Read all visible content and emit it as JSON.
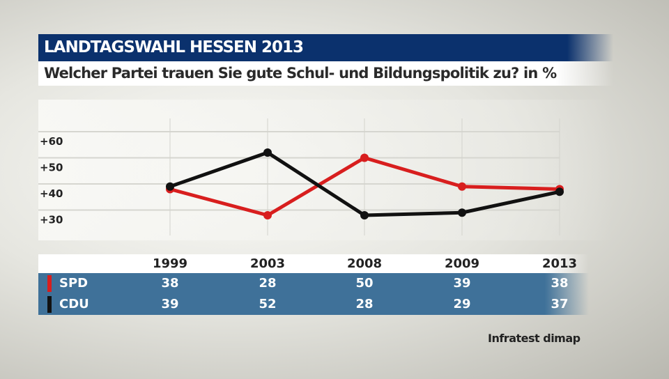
{
  "header": {
    "title": "LANDTAGSWAHL HESSEN 2013",
    "subtitle": "Welcher Partei trauen Sie gute Schul- und Bildungspolitik zu?  in %"
  },
  "source": "Infratest dimap",
  "chart_data": {
    "type": "line",
    "categories": [
      "1999",
      "2003",
      "2008",
      "2009",
      "2013"
    ],
    "yticks": [
      "+30",
      "+40",
      "+50",
      "+60"
    ],
    "ytick_values": [
      30,
      40,
      50,
      60
    ],
    "grid": true,
    "series": [
      {
        "name": "SPD",
        "color": "#d81e1e",
        "values": [
          38,
          28,
          50,
          39,
          38
        ]
      },
      {
        "name": "CDU",
        "color": "#111111",
        "values": [
          39,
          52,
          28,
          29,
          37
        ]
      }
    ]
  }
}
